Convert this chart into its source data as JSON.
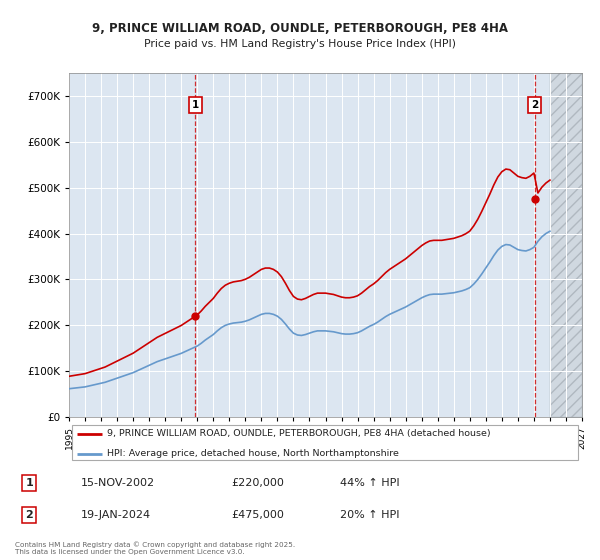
{
  "title_line1": "9, PRINCE WILLIAM ROAD, OUNDLE, PETERBOROUGH, PE8 4HA",
  "title_line2": "Price paid vs. HM Land Registry's House Price Index (HPI)",
  "red_label": "9, PRINCE WILLIAM ROAD, OUNDLE, PETERBOROUGH, PE8 4HA (detached house)",
  "blue_label": "HPI: Average price, detached house, North Northamptonshire",
  "footnote": "Contains HM Land Registry data © Crown copyright and database right 2025.\nThis data is licensed under the Open Government Licence v3.0.",
  "transaction1_date": "15-NOV-2002",
  "transaction1_price": "£220,000",
  "transaction1_hpi": "44% ↑ HPI",
  "transaction2_date": "19-JAN-2024",
  "transaction2_price": "£475,000",
  "transaction2_hpi": "20% ↑ HPI",
  "ylim": [
    0,
    750000
  ],
  "yticks": [
    0,
    100000,
    200000,
    300000,
    400000,
    500000,
    600000,
    700000
  ],
  "background_color": "#dce6f1",
  "red_color": "#cc0000",
  "blue_color": "#6699cc",
  "grid_color": "#ffffff",
  "marker1_x": 2002.88,
  "marker1_y": 220000,
  "marker2_x": 2024.05,
  "marker2_y": 475000,
  "xmin": 1995,
  "xmax": 2027,
  "hpi_years": [
    1995.0,
    1995.25,
    1995.5,
    1995.75,
    1996.0,
    1996.25,
    1996.5,
    1996.75,
    1997.0,
    1997.25,
    1997.5,
    1997.75,
    1998.0,
    1998.25,
    1998.5,
    1998.75,
    1999.0,
    1999.25,
    1999.5,
    1999.75,
    2000.0,
    2000.25,
    2000.5,
    2000.75,
    2001.0,
    2001.25,
    2001.5,
    2001.75,
    2002.0,
    2002.25,
    2002.5,
    2002.75,
    2003.0,
    2003.25,
    2003.5,
    2003.75,
    2004.0,
    2004.25,
    2004.5,
    2004.75,
    2005.0,
    2005.25,
    2005.5,
    2005.75,
    2006.0,
    2006.25,
    2006.5,
    2006.75,
    2007.0,
    2007.25,
    2007.5,
    2007.75,
    2008.0,
    2008.25,
    2008.5,
    2008.75,
    2009.0,
    2009.25,
    2009.5,
    2009.75,
    2010.0,
    2010.25,
    2010.5,
    2010.75,
    2011.0,
    2011.25,
    2011.5,
    2011.75,
    2012.0,
    2012.25,
    2012.5,
    2012.75,
    2013.0,
    2013.25,
    2013.5,
    2013.75,
    2014.0,
    2014.25,
    2014.5,
    2014.75,
    2015.0,
    2015.25,
    2015.5,
    2015.75,
    2016.0,
    2016.25,
    2016.5,
    2016.75,
    2017.0,
    2017.25,
    2017.5,
    2017.75,
    2018.0,
    2018.25,
    2018.5,
    2018.75,
    2019.0,
    2019.25,
    2019.5,
    2019.75,
    2020.0,
    2020.25,
    2020.5,
    2020.75,
    2021.0,
    2021.25,
    2021.5,
    2021.75,
    2022.0,
    2022.25,
    2022.5,
    2022.75,
    2023.0,
    2023.25,
    2023.5,
    2023.75,
    2024.0,
    2024.25,
    2024.5,
    2024.75,
    2025.0
  ],
  "hpi_values": [
    62000,
    63000,
    64000,
    65000,
    66000,
    68000,
    70000,
    72000,
    74000,
    76000,
    79000,
    82000,
    85000,
    88000,
    91000,
    94000,
    97000,
    101000,
    105000,
    109000,
    113000,
    117000,
    121000,
    124000,
    127000,
    130000,
    133000,
    136000,
    139000,
    143000,
    147000,
    151000,
    155000,
    161000,
    168000,
    174000,
    180000,
    188000,
    195000,
    200000,
    203000,
    205000,
    206000,
    207000,
    209000,
    212000,
    216000,
    220000,
    224000,
    226000,
    226000,
    224000,
    220000,
    213000,
    203000,
    192000,
    183000,
    179000,
    178000,
    180000,
    183000,
    186000,
    188000,
    188000,
    188000,
    187000,
    186000,
    184000,
    182000,
    181000,
    181000,
    182000,
    184000,
    188000,
    193000,
    198000,
    202000,
    207000,
    213000,
    219000,
    224000,
    228000,
    232000,
    236000,
    240000,
    245000,
    250000,
    255000,
    260000,
    264000,
    267000,
    268000,
    268000,
    268000,
    269000,
    270000,
    271000,
    273000,
    275000,
    278000,
    282000,
    290000,
    300000,
    312000,
    325000,
    338000,
    352000,
    364000,
    372000,
    376000,
    375000,
    370000,
    365000,
    363000,
    362000,
    365000,
    370000,
    383000,
    393000,
    400000,
    405000
  ]
}
